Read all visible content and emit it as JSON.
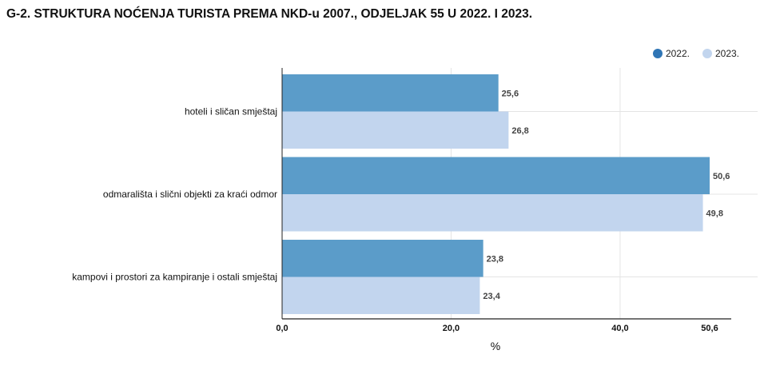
{
  "title": "G-2. STRUKTURA NOĆENJA TURISTA PREMA NKD-u 2007., ODJELJAK 55 U 2022. I 2023.",
  "colors": {
    "s2022": "#5b9cc9",
    "s2022_legend": "#2f75b5",
    "s2023": "#c2d5ee",
    "grid": "#e4e4e4"
  },
  "chart_data": {
    "type": "bar",
    "orientation": "horizontal",
    "title": "G-2. STRUKTURA NOĆENJA TURISTA PREMA NKD-u 2007., ODJELJAK 55 U 2022. I 2023.",
    "categories": [
      "hoteli i sličan smještaj",
      "odmarališta i slični objekti za kraći odmor",
      "kampovi i prostori za kampiranje i ostali smještaj"
    ],
    "series": [
      {
        "name": "2022.",
        "values": [
          25.6,
          50.6,
          23.8
        ],
        "labels": [
          "25,6",
          "50,6",
          "23,8"
        ]
      },
      {
        "name": "2023.",
        "values": [
          26.8,
          49.8,
          23.4
        ],
        "labels": [
          "26,8",
          "49,8",
          "23,4"
        ]
      }
    ],
    "xlabel": "%",
    "xlim": [
      0,
      50.6
    ],
    "xticks": [
      0,
      20,
      40,
      50.6
    ],
    "xtick_labels": [
      "0,0",
      "20,0",
      "40,0",
      "50,6"
    ],
    "grid": true,
    "legend_position": "top-right"
  }
}
